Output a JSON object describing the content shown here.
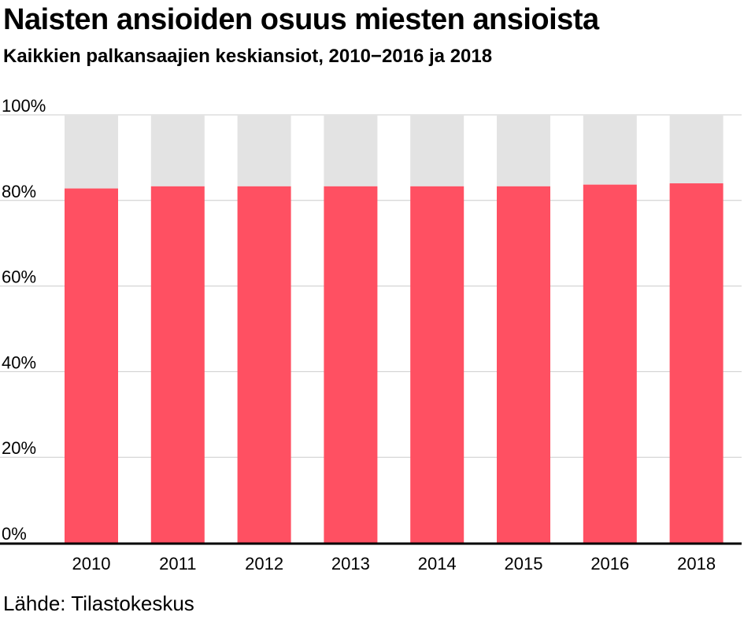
{
  "title": "Naisten ansioiden osuus miesten ansioista",
  "subtitle": "Kaikkien palkansaajien keskiansiot, 2010−2016 ja 2018",
  "source": "Lähde: Tilastokeskus",
  "colors": {
    "bar": "#ff5062",
    "remainder": "#e3e3e3",
    "grid": "#cccccc",
    "axis": "#000000"
  },
  "chart_data": {
    "type": "bar",
    "stacked_to_100": true,
    "categories": [
      "2010",
      "2011",
      "2012",
      "2013",
      "2014",
      "2015",
      "2016",
      "2018"
    ],
    "values": [
      82.8,
      83.3,
      83.3,
      83.3,
      83.3,
      83.3,
      83.7,
      84.0
    ],
    "ylim": [
      0,
      100
    ],
    "yticks": [
      0,
      20,
      40,
      60,
      80,
      100
    ],
    "ytick_labels": [
      "0%",
      "20%",
      "40%",
      "60%",
      "80%",
      "100%"
    ],
    "grid": true
  }
}
